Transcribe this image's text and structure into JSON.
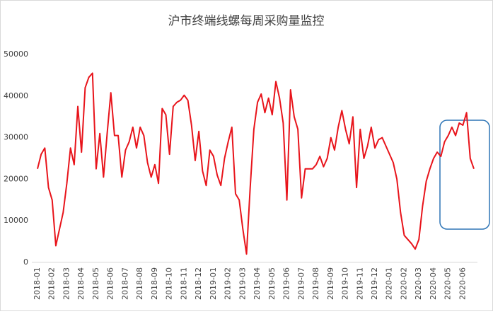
{
  "chart_data": {
    "type": "line",
    "title": "沪市终端线螺每周采购量监控",
    "categories": [
      "2018-01",
      null,
      null,
      null,
      "2018-02",
      null,
      null,
      null,
      "2018-03",
      null,
      null,
      null,
      "2018-04",
      null,
      null,
      null,
      "2018-05",
      null,
      null,
      null,
      "2018-06",
      null,
      null,
      null,
      "2018-07",
      null,
      null,
      null,
      "2018-08",
      null,
      null,
      null,
      "2018-09",
      null,
      null,
      null,
      "2018-10",
      null,
      null,
      null,
      "2018-11",
      null,
      null,
      null,
      "2018-12",
      null,
      null,
      null,
      "2019-01",
      null,
      null,
      null,
      "2019-02",
      null,
      null,
      null,
      "2019-03",
      null,
      null,
      null,
      "2019-04",
      null,
      null,
      null,
      "2019-05",
      null,
      null,
      null,
      "2019-06",
      null,
      null,
      null,
      "2019-07",
      null,
      null,
      null,
      "2019-08",
      null,
      null,
      null,
      "2019-09",
      null,
      null,
      null,
      "2019-10",
      null,
      null,
      null,
      "2019-11",
      null,
      null,
      null,
      "2019-12",
      null,
      null,
      null,
      "2020-01",
      null,
      null,
      null,
      "2020-02",
      null,
      null,
      null,
      "2020-03",
      null,
      null,
      null,
      "2020-04",
      null,
      null,
      null,
      "2020-05",
      null,
      null,
      null,
      "2020-06",
      null,
      null,
      null
    ],
    "series": [
      {
        "name": "每周采购量",
        "color": "#e8141b",
        "values": [
          22500,
          26000,
          27500,
          18000,
          15000,
          4000,
          8000,
          12000,
          19000,
          27500,
          23500,
          37500,
          26500,
          42000,
          44500,
          45500,
          22500,
          31000,
          20500,
          31000,
          40800,
          30500,
          30500,
          20500,
          27000,
          29000,
          32500,
          27500,
          32500,
          30500,
          24000,
          20500,
          23500,
          19000,
          37000,
          35500,
          26000,
          37500,
          38500,
          39000,
          40200,
          39000,
          33000,
          24500,
          31500,
          22000,
          18500,
          27000,
          25500,
          21000,
          18500,
          25000,
          29000,
          32500,
          16500,
          15000,
          8000,
          2000,
          18000,
          32000,
          38500,
          40500,
          36000,
          39500,
          35500,
          43500,
          39500,
          33500,
          15000,
          41500,
          35000,
          32000,
          15500,
          22500,
          22500,
          22500,
          23500,
          25500,
          23000,
          25000,
          30000,
          27000,
          32500,
          36500,
          32000,
          28500,
          35000,
          18000,
          32000,
          25000,
          28000,
          32500,
          27500,
          29500,
          30000,
          28000,
          26000,
          24000,
          20000,
          12000,
          6500,
          5500,
          4500,
          3200,
          5500,
          13500,
          19500,
          22500,
          25000,
          26500,
          25500,
          29000,
          30500,
          32500,
          30500,
          33500,
          33000,
          36000,
          25000,
          22500
        ]
      }
    ],
    "ylim": [
      0,
      50000
    ],
    "yticks": [
      0,
      10000,
      20000,
      30000,
      40000,
      50000
    ]
  }
}
